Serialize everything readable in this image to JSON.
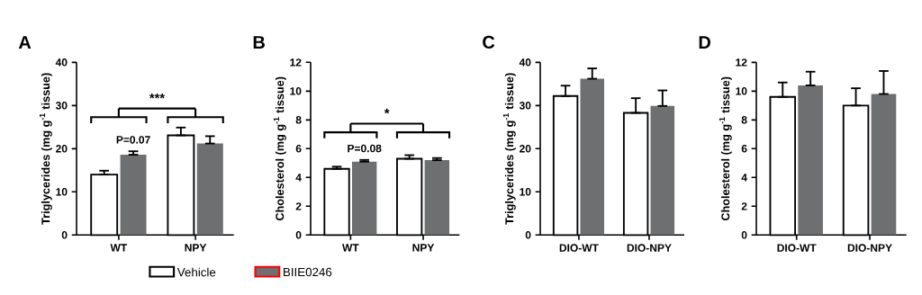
{
  "chart_data": [
    {
      "type": "bar",
      "title": "A",
      "ylabel": "Triglycerides (mg g$^{-1}$ tissue)",
      "categories": [
        "WT",
        "NPY"
      ],
      "ylim": [
        0,
        40
      ],
      "yticks": [
        0,
        10,
        20,
        30,
        40
      ],
      "legend": "bottom",
      "annotations": [
        "***",
        "P=0.07"
      ],
      "series": [
        {
          "name": "Vehicle",
          "color": "#ffffff",
          "values": [
            14.0,
            23.1
          ],
          "errors": [
            [
              14.0,
              14.9
            ],
            [
              23.1,
              24.9
            ]
          ]
        },
        {
          "name": "BIIE0246",
          "color": "#6e6f71",
          "values": [
            18.6,
            21.2
          ],
          "errors": [
            [
              18.6,
              19.4
            ],
            [
              21.2,
              22.9
            ]
          ]
        }
      ]
    },
    {
      "type": "bar",
      "title": "B",
      "ylabel": "Cholesterol (mg g$^{-1}$ tissue)",
      "categories": [
        "WT",
        "NPY"
      ],
      "ylim": [
        0,
        12
      ],
      "yticks": [
        0,
        2,
        4,
        6,
        8,
        10,
        12
      ],
      "annotations": [
        "*",
        "P=0.08"
      ],
      "series": [
        {
          "color": "#ffffff",
          "values": [
            4.6,
            5.3
          ],
          "errors": [
            [
              4.6,
              4.75
            ],
            [
              5.3,
              5.55
            ]
          ]
        },
        {
          "color": "#6e6f71",
          "values": [
            5.1,
            5.2
          ],
          "errors": [
            [
              5.1,
              5.22
            ],
            [
              5.2,
              5.35
            ]
          ]
        }
      ]
    },
    {
      "type": "bar",
      "title": "C",
      "ylabel": "Triglycerides (mg g$^{-1}$ tissue)",
      "categories": [
        "DIO-WT",
        "DIO-NPY"
      ],
      "ylim": [
        0,
        40
      ],
      "yticks": [
        0,
        10,
        20,
        30,
        40
      ],
      "series": [
        {
          "color": "#ffffff",
          "values": [
            32.2,
            28.3
          ],
          "errors": [
            [
              32.2,
              34.6
            ],
            [
              28.3,
              31.7
            ]
          ]
        },
        {
          "color": "#6e6f71",
          "values": [
            36.2,
            29.9
          ],
          "errors": [
            [
              36.2,
              38.6
            ],
            [
              29.9,
              33.5
            ]
          ]
        }
      ]
    },
    {
      "type": "bar",
      "title": "D",
      "ylabel": "Cholesterol (mg g$^{-1}$ tissue)",
      "categories": [
        "DIO-WT",
        "DIO-NPY"
      ],
      "ylim": [
        0,
        12
      ],
      "yticks": [
        0,
        2,
        4,
        6,
        8,
        10,
        12
      ],
      "series": [
        {
          "color": "#ffffff",
          "values": [
            9.6,
            9.0
          ],
          "errors": [
            [
              9.6,
              10.6
            ],
            [
              9.0,
              10.2
            ]
          ]
        },
        {
          "color": "#6e6f71",
          "values": [
            10.4,
            9.8
          ],
          "errors": [
            [
              10.4,
              11.35
            ],
            [
              9.8,
              11.4
            ]
          ]
        }
      ]
    }
  ]
}
